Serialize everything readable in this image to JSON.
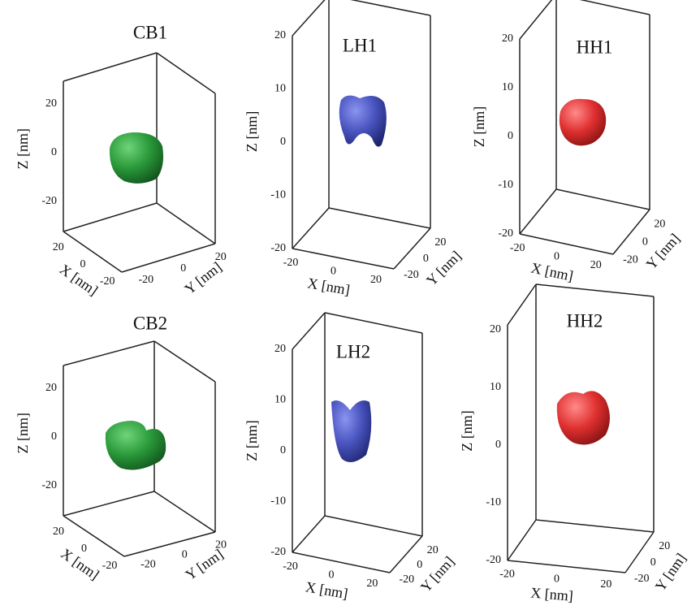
{
  "panels": [
    {
      "title": "CB1",
      "z_label": "Z [nm]",
      "x_label": "X [nm]",
      "y_label": "Y [nm]",
      "zticks": [
        -20,
        0,
        20
      ],
      "xticks": [
        20,
        0,
        -20
      ],
      "yticks": [
        -20,
        0,
        20
      ]
    },
    {
      "title": "LH1",
      "z_label": "Z [nm]",
      "x_label": "X [nm]",
      "y_label": "Y [nm]",
      "zticks": [
        -20,
        -10,
        0,
        10,
        20
      ],
      "xticks": [
        -20,
        0,
        20
      ],
      "yticks": [
        -20,
        0,
        20
      ]
    },
    {
      "title": "HH1",
      "z_label": "Z [nm]",
      "x_label": "X [nm]",
      "y_label": "Y [nm]",
      "zticks": [
        -20,
        -10,
        0,
        10,
        20
      ],
      "xticks": [
        -20,
        0,
        20
      ],
      "yticks": [
        -20,
        0,
        20
      ]
    },
    {
      "title": "CB2",
      "z_label": "Z [nm]",
      "x_label": "X [nm]",
      "y_label": "Y [nm]",
      "zticks": [
        -20,
        0,
        20
      ],
      "xticks": [
        20,
        0,
        -20
      ],
      "yticks": [
        -20,
        0,
        20
      ]
    },
    {
      "title": "LH2",
      "z_label": "Z [nm]",
      "x_label": "X [nm]",
      "y_label": "Y [nm]",
      "zticks": [
        -20,
        -10,
        0,
        10,
        20
      ],
      "xticks": [
        -20,
        0,
        20
      ],
      "yticks": [
        -20,
        0,
        20
      ]
    },
    {
      "title": "HH2",
      "z_label": "Z [nm]",
      "x_label": "X [nm]",
      "y_label": "Y [nm]",
      "zticks": [
        -20,
        -10,
        0,
        10,
        20
      ],
      "xticks": [
        -20,
        0,
        20
      ],
      "yticks": [
        -20,
        0,
        20
      ]
    }
  ]
}
